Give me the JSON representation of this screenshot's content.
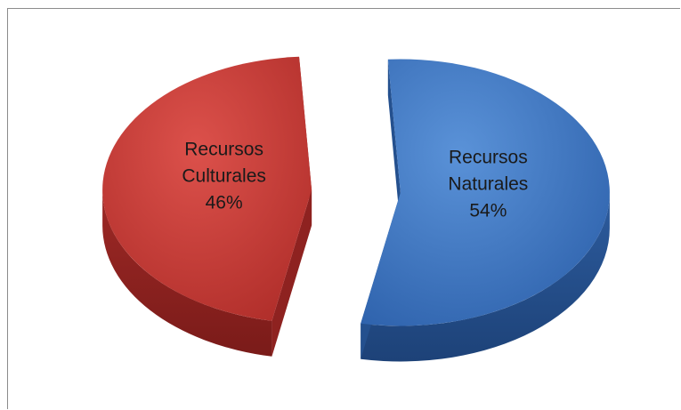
{
  "chart_data": {
    "type": "pie",
    "style": "3d-exploded",
    "slices": [
      {
        "name": "Recursos Naturales",
        "label_lines": [
          "Recursos",
          "Naturales"
        ],
        "value": 54,
        "value_label": "54%",
        "color": "#3f78c4",
        "side_color": "#24508e"
      },
      {
        "name": "Recursos Culturales",
        "label_lines": [
          "Recursos",
          "Culturales"
        ],
        "value": 46,
        "value_label": "46%",
        "color": "#c83a36",
        "side_color": "#8e2220"
      }
    ],
    "legend": "none"
  }
}
